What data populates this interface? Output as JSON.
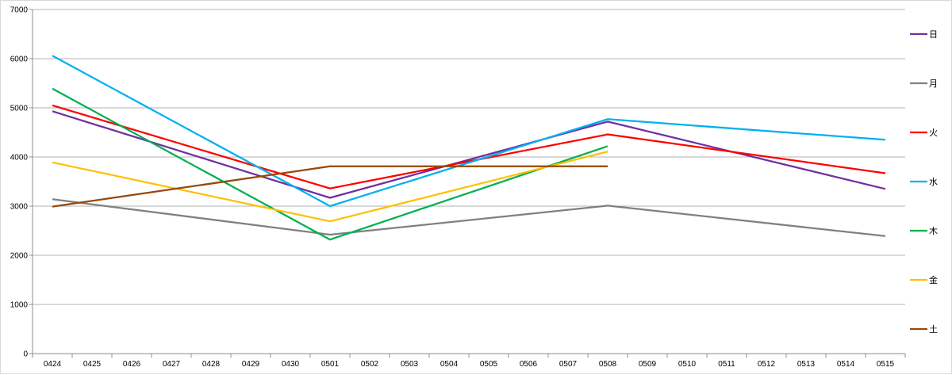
{
  "chart_data": {
    "type": "line",
    "title": "",
    "xlabel": "",
    "ylabel": "",
    "categories": [
      "0424",
      "0425",
      "0426",
      "0427",
      "0428",
      "0429",
      "0430",
      "0501",
      "0502",
      "0503",
      "0504",
      "0505",
      "0506",
      "0507",
      "0508",
      "0509",
      "0510",
      "0511",
      "0512",
      "0513",
      "0514",
      "0515"
    ],
    "ylim": [
      0,
      7000
    ],
    "yticks": [
      0,
      1000,
      2000,
      3000,
      4000,
      5000,
      6000,
      7000
    ],
    "grid": "horizontal",
    "legend_position": "right",
    "series": [
      {
        "name": "日",
        "color": "#7030a0",
        "values": [
          4930,
          null,
          null,
          null,
          null,
          null,
          null,
          3170,
          null,
          null,
          null,
          null,
          null,
          null,
          4720,
          null,
          null,
          null,
          null,
          null,
          null,
          3350
        ]
      },
      {
        "name": "月",
        "color": "#808080",
        "values": [
          3140,
          null,
          null,
          null,
          null,
          null,
          null,
          2420,
          null,
          null,
          null,
          null,
          null,
          null,
          3010,
          null,
          null,
          null,
          null,
          null,
          null,
          2390
        ]
      },
      {
        "name": "火",
        "color": "#ff0000",
        "values": [
          5050,
          null,
          null,
          null,
          null,
          null,
          null,
          3360,
          null,
          null,
          null,
          null,
          null,
          null,
          4460,
          null,
          null,
          null,
          null,
          null,
          null,
          3670
        ]
      },
      {
        "name": "水",
        "color": "#00b0f0",
        "values": [
          6060,
          null,
          null,
          null,
          null,
          null,
          null,
          3000,
          null,
          null,
          null,
          null,
          null,
          null,
          4770,
          null,
          null,
          null,
          null,
          null,
          null,
          4350
        ]
      },
      {
        "name": "木",
        "color": "#00b050",
        "values": [
          5390,
          null,
          null,
          null,
          null,
          null,
          null,
          2320,
          null,
          null,
          null,
          null,
          null,
          null,
          4220,
          null,
          null,
          null,
          null,
          null,
          null,
          null
        ]
      },
      {
        "name": "金",
        "color": "#ffc000",
        "values": [
          3890,
          null,
          null,
          null,
          null,
          null,
          null,
          2690,
          null,
          null,
          null,
          null,
          null,
          null,
          4110,
          null,
          null,
          null,
          null,
          null,
          null,
          null
        ]
      },
      {
        "name": "土",
        "color": "#974706",
        "values": [
          2990,
          null,
          null,
          null,
          null,
          null,
          null,
          3810,
          null,
          null,
          null,
          null,
          null,
          null,
          3810,
          null,
          null,
          null,
          null,
          null,
          null,
          null
        ]
      }
    ]
  }
}
